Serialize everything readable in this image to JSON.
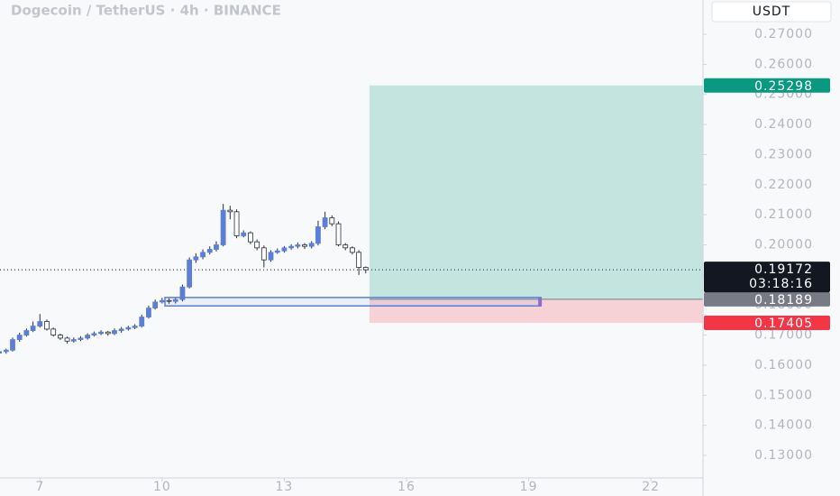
{
  "chart_data": {
    "type": "candlestick",
    "title": "Dogecoin / TetherUS · 4h · BINANCE",
    "currency": "USDT",
    "x": [
      6,
      6.17,
      6.33,
      6.5,
      6.67,
      6.83,
      7,
      7.17,
      7.33,
      7.5,
      7.67,
      7.83,
      8,
      8.17,
      8.33,
      8.5,
      8.67,
      8.83,
      9,
      9.17,
      9.33,
      9.5,
      9.67,
      9.83,
      10,
      10.17,
      10.33,
      10.5,
      10.67,
      10.83,
      11,
      11.17,
      11.33,
      11.5,
      11.67,
      11.83,
      12,
      12.17,
      12.33,
      12.5,
      12.67,
      12.83,
      13,
      13.17,
      13.33,
      13.5,
      13.67,
      13.83,
      14,
      14.17,
      14.33,
      14.5,
      14.67,
      14.83,
      15
    ],
    "open": [
      0.164,
      0.1645,
      0.165,
      0.1685,
      0.17,
      0.1715,
      0.173,
      0.1745,
      0.172,
      0.17,
      0.169,
      0.168,
      0.1685,
      0.169,
      0.17,
      0.1705,
      0.171,
      0.1705,
      0.1715,
      0.172,
      0.1725,
      0.173,
      0.176,
      0.179,
      0.181,
      0.1815,
      0.1812,
      0.1818,
      0.186,
      0.195,
      0.196,
      0.1975,
      0.1985,
      0.2,
      0.2115,
      0.211,
      0.203,
      0.204,
      0.201,
      0.199,
      0.195,
      0.1975,
      0.198,
      0.199,
      0.1995,
      0.2,
      0.1995,
      0.2005,
      0.206,
      0.209,
      0.207,
      0.2,
      0.199,
      0.1975,
      0.1925
    ],
    "high": [
      0.1648,
      0.1655,
      0.1692,
      0.1708,
      0.1722,
      0.1745,
      0.177,
      0.1752,
      0.1725,
      0.1705,
      0.1695,
      0.1692,
      0.1696,
      0.1706,
      0.1712,
      0.1716,
      0.1714,
      0.1722,
      0.1727,
      0.1731,
      0.1736,
      0.1768,
      0.1798,
      0.1818,
      0.1824,
      0.1822,
      0.1825,
      0.1868,
      0.1958,
      0.1972,
      0.1985,
      0.1995,
      0.2012,
      0.2136,
      0.213,
      0.2118,
      0.2048,
      0.2045,
      0.2018,
      0.1998,
      0.1982,
      0.1988,
      0.1996,
      0.2002,
      0.2008,
      0.2006,
      0.2012,
      0.208,
      0.211,
      0.2098,
      0.2078,
      0.2006,
      0.1995,
      0.1982,
      0.1928
    ],
    "low": [
      0.1632,
      0.1638,
      0.1645,
      0.1678,
      0.1695,
      0.171,
      0.1725,
      0.1715,
      0.1695,
      0.1684,
      0.1672,
      0.1675,
      0.168,
      0.1685,
      0.1695,
      0.17,
      0.1698,
      0.17,
      0.1708,
      0.1715,
      0.172,
      0.1725,
      0.1755,
      0.1785,
      0.1805,
      0.1804,
      0.1805,
      0.1812,
      0.1855,
      0.194,
      0.1952,
      0.1968,
      0.1978,
      0.1995,
      0.2085,
      0.2022,
      0.2025,
      0.2002,
      0.1982,
      0.1925,
      0.1944,
      0.197,
      0.1974,
      0.1984,
      0.1988,
      0.1986,
      0.1988,
      0.1998,
      0.2052,
      0.2062,
      0.1995,
      0.1982,
      0.1968,
      0.19,
      0.1905
    ],
    "close": [
      0.1645,
      0.165,
      0.1685,
      0.17,
      0.1715,
      0.173,
      0.1745,
      0.172,
      0.17,
      0.169,
      0.168,
      0.1685,
      0.169,
      0.17,
      0.1705,
      0.171,
      0.1705,
      0.1715,
      0.172,
      0.1725,
      0.173,
      0.176,
      0.179,
      0.181,
      0.1815,
      0.1812,
      0.1818,
      0.186,
      0.195,
      0.196,
      0.1975,
      0.1985,
      0.2,
      0.2115,
      0.211,
      0.203,
      0.204,
      0.201,
      0.199,
      0.195,
      0.1975,
      0.198,
      0.199,
      0.1995,
      0.2,
      0.1995,
      0.2005,
      0.206,
      0.209,
      0.207,
      0.2,
      0.199,
      0.1975,
      0.1925,
      0.19172
    ],
    "up_color": "#5b7ed6",
    "down_color": "#ffffff",
    "wick_color": "#2a2e39",
    "current_price": 0.19172,
    "countdown": "03:18:16",
    "position": {
      "start": 15.09,
      "entry": 0.18189,
      "target": 0.25298,
      "stop": 0.17405,
      "target_color": "#089981",
      "entry_color": "#787b86",
      "stop_color": "#f23645"
    },
    "zone": {
      "x": [
        10.07,
        19.3
      ],
      "y": [
        0.1797,
        0.1825
      ],
      "color": "#5b7ed6"
    },
    "xlim": [
      6.02,
      23.28
    ],
    "xticks": [
      7,
      10,
      13,
      16,
      19,
      22
    ],
    "ylim": [
      0.1225,
      0.2814
    ],
    "yticks": [
      {
        "value": 0.13,
        "label": "0.13000"
      },
      {
        "value": 0.14,
        "label": "0.14000"
      },
      {
        "value": 0.15,
        "label": "0.15000"
      },
      {
        "value": 0.16,
        "label": "0.16000"
      },
      {
        "value": 0.17,
        "label": "0.17000"
      },
      {
        "value": 0.18,
        "label": "0.18000"
      },
      {
        "value": 0.19,
        "label": "0.19000"
      },
      {
        "value": 0.2,
        "label": "0.20000"
      },
      {
        "value": 0.21,
        "label": "0.21000"
      },
      {
        "value": 0.22,
        "label": "0.22000"
      },
      {
        "value": 0.23,
        "label": "0.23000"
      },
      {
        "value": 0.24,
        "label": "0.24000"
      },
      {
        "value": 0.25,
        "label": "0.25000"
      },
      {
        "value": 0.26,
        "label": "0.26000"
      },
      {
        "value": 0.27,
        "label": "0.27000"
      }
    ]
  }
}
